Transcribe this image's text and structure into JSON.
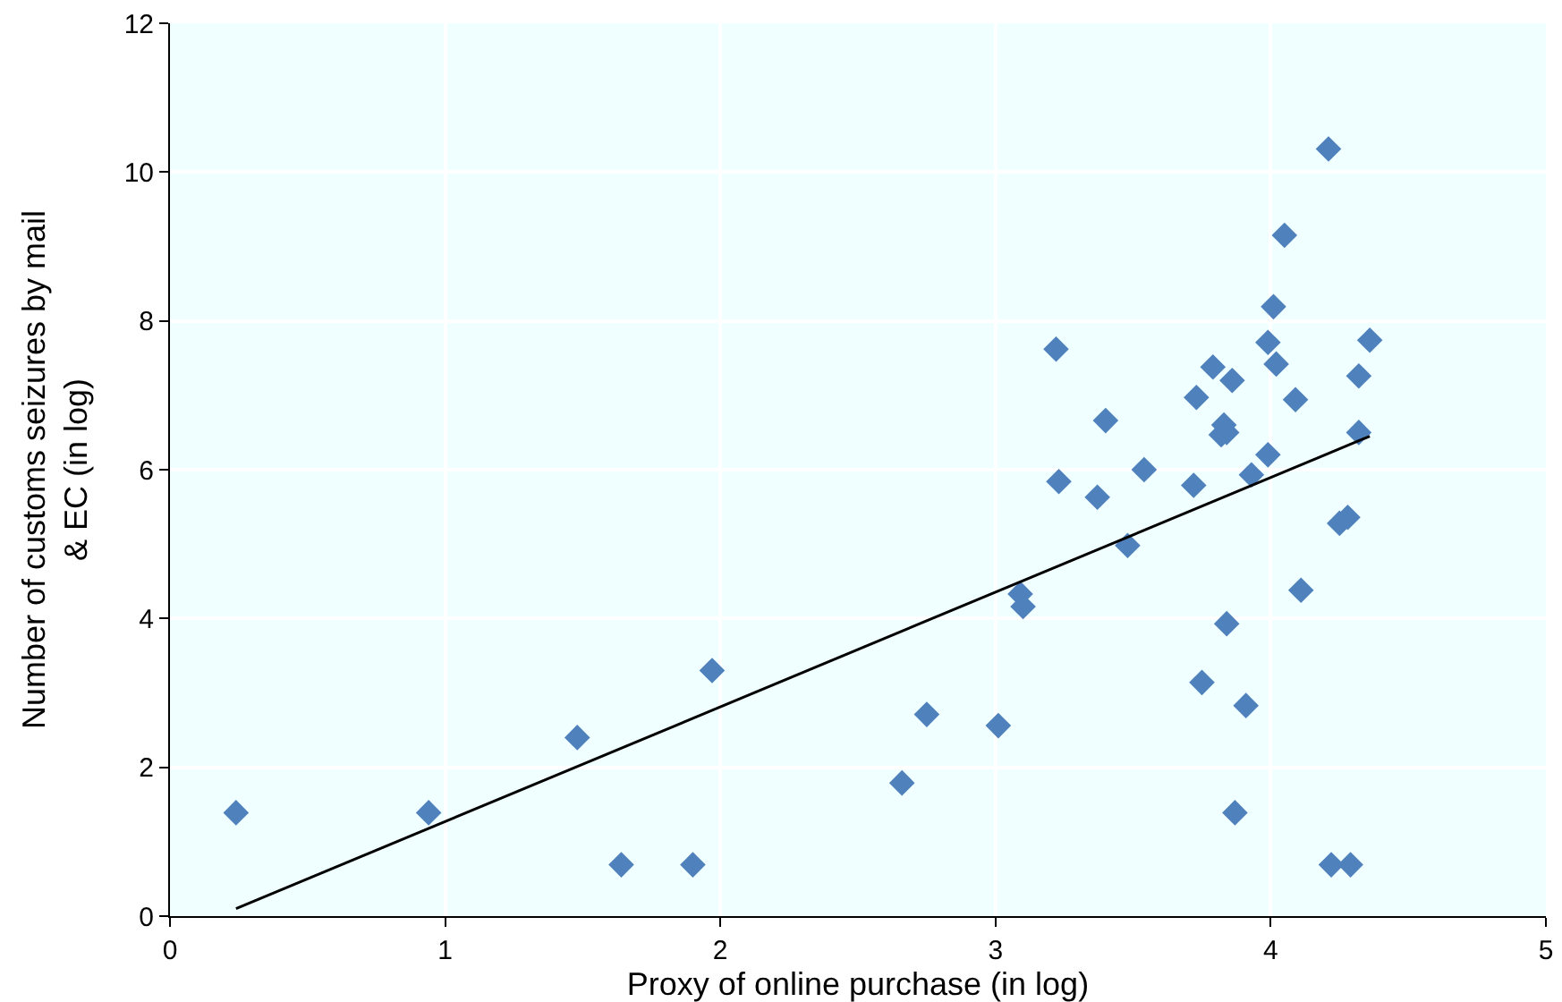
{
  "chart_data": {
    "type": "scatter",
    "xlabel": "Proxy of online purchase (in log)",
    "ylabel": "Number of customs seizures by mail & EC (in log)",
    "xlim": [
      0,
      5
    ],
    "xticks": [
      0,
      1,
      2,
      3,
      4,
      5
    ],
    "ylim": [
      0,
      12
    ],
    "yticks": [
      0,
      2,
      4,
      6,
      8,
      10,
      12
    ],
    "grid": true,
    "legend": false,
    "series": [
      {
        "marker": "diamond",
        "color": "#4f81bd",
        "x": [
          0.24,
          0.94,
          1.48,
          1.64,
          1.9,
          1.97,
          2.66,
          2.75,
          3.01,
          3.09,
          3.1,
          3.22,
          3.23,
          3.37,
          3.4,
          3.48,
          3.54,
          3.72,
          3.73,
          3.75,
          3.79,
          3.82,
          3.83,
          3.84,
          3.84,
          3.86,
          3.87,
          3.91,
          3.93,
          3.99,
          3.99,
          4.01,
          4.02,
          4.05,
          4.09,
          4.11,
          4.21,
          4.22,
          4.25,
          4.28,
          4.29,
          4.32,
          4.32,
          4.36
        ],
        "values": [
          1.39,
          1.39,
          2.4,
          0.69,
          0.69,
          3.3,
          1.79,
          2.71,
          2.56,
          4.33,
          4.16,
          7.62,
          5.84,
          5.63,
          6.66,
          4.98,
          6.0,
          5.79,
          6.97,
          3.14,
          7.38,
          6.47,
          6.6,
          6.5,
          3.93,
          7.2,
          1.39,
          2.83,
          5.93,
          7.71,
          6.2,
          8.19,
          7.42,
          9.15,
          6.94,
          4.38,
          10.31,
          0.69,
          5.28,
          5.36,
          0.69,
          7.26,
          6.5,
          7.74
        ]
      },
      {
        "type": "line",
        "marker": "none",
        "color": "#000000",
        "x": [
          0.24,
          4.36
        ],
        "values": [
          0.1,
          6.45
        ]
      }
    ]
  }
}
